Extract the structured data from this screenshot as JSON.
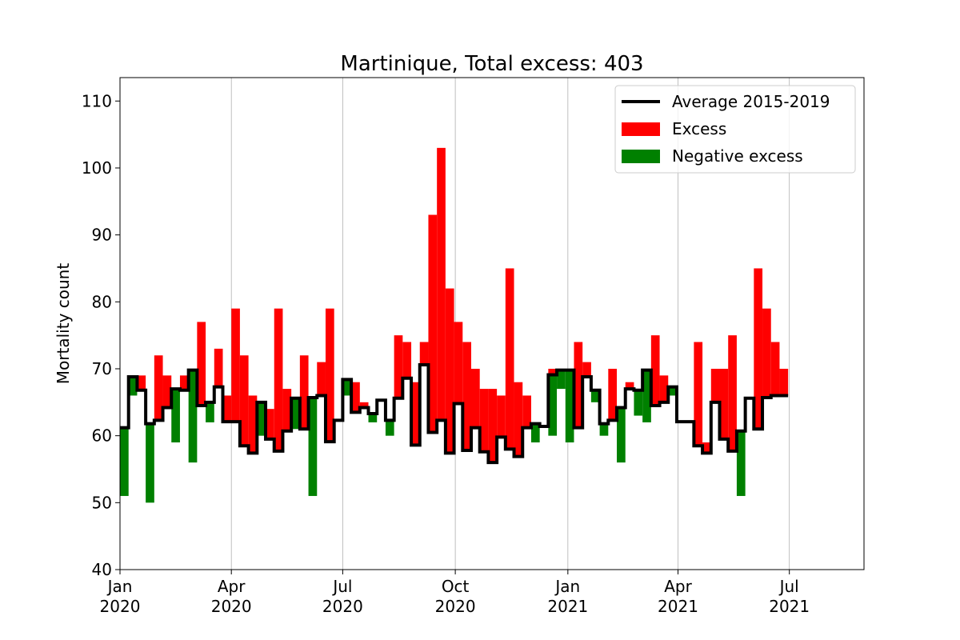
{
  "chart_data": {
    "type": "bar",
    "title": "Martinique, Total excess: 403",
    "xlabel": "",
    "ylabel": "Mortality count",
    "ylim": [
      40,
      113.5
    ],
    "xlim": [
      "2020-01-01",
      "2021-08-31"
    ],
    "grid": "vertical",
    "legend_position": "top-right",
    "y_ticks": [
      40,
      50,
      60,
      70,
      80,
      90,
      100,
      110
    ],
    "x_ticks": [
      {
        "date": "2020-01-01",
        "month": "Jan",
        "year": "2020"
      },
      {
        "date": "2020-04-01",
        "month": "Apr",
        "year": "2020"
      },
      {
        "date": "2020-07-01",
        "month": "Jul",
        "year": "2020"
      },
      {
        "date": "2020-10-01",
        "month": "Oct",
        "year": "2020"
      },
      {
        "date": "2021-01-01",
        "month": "Jan",
        "year": "2021"
      },
      {
        "date": "2021-04-01",
        "month": "Apr",
        "year": "2021"
      },
      {
        "date": "2021-07-01",
        "month": "Jul",
        "year": "2021"
      }
    ],
    "week_starts": [
      "2020-01-01",
      "2020-01-08",
      "2020-01-15",
      "2020-01-22",
      "2020-01-29",
      "2020-02-05",
      "2020-02-12",
      "2020-02-19",
      "2020-02-26",
      "2020-03-04",
      "2020-03-11",
      "2020-03-18",
      "2020-03-25",
      "2020-04-01",
      "2020-04-08",
      "2020-04-15",
      "2020-04-22",
      "2020-04-29",
      "2020-05-06",
      "2020-05-13",
      "2020-05-20",
      "2020-05-27",
      "2020-06-03",
      "2020-06-10",
      "2020-06-17",
      "2020-06-24",
      "2020-07-01",
      "2020-07-08",
      "2020-07-15",
      "2020-07-22",
      "2020-07-29",
      "2020-08-05",
      "2020-08-12",
      "2020-08-19",
      "2020-08-26",
      "2020-09-02",
      "2020-09-09",
      "2020-09-16",
      "2020-09-23",
      "2020-09-30",
      "2020-10-07",
      "2020-10-14",
      "2020-10-21",
      "2020-10-28",
      "2020-11-04",
      "2020-11-11",
      "2020-11-18",
      "2020-11-25",
      "2020-12-02",
      "2020-12-09",
      "2020-12-16",
      "2020-12-23",
      "2020-12-30",
      "2021-01-06",
      "2021-01-13",
      "2021-01-20",
      "2021-01-27",
      "2021-02-03",
      "2021-02-10",
      "2021-02-17",
      "2021-02-24",
      "2021-03-03",
      "2021-03-10",
      "2021-03-17",
      "2021-03-24",
      "2021-03-31",
      "2021-04-07",
      "2021-04-14",
      "2021-04-21",
      "2021-04-28",
      "2021-05-05",
      "2021-05-12",
      "2021-05-19",
      "2021-05-26",
      "2021-06-02",
      "2021-06-09",
      "2021-06-16",
      "2021-06-23"
    ],
    "week_end": "2021-06-30",
    "series": [
      {
        "name": "Average 2015-2019",
        "color": "#000000",
        "values": [
          61.2,
          68.8,
          66.8,
          61.8,
          62.3,
          64.2,
          67.0,
          66.8,
          69.8,
          64.5,
          65.0,
          67.3,
          62.1,
          62.1,
          58.5,
          57.4,
          65.0,
          59.5,
          57.7,
          60.7,
          65.6,
          61.0,
          65.7,
          66.0,
          59.1,
          62.3,
          68.4,
          63.5,
          64.2,
          63.3,
          65.3,
          62.3,
          65.6,
          68.6,
          58.6,
          70.6,
          60.5,
          62.3,
          57.4,
          64.8,
          57.8,
          61.2,
          57.6,
          56.0,
          59.8,
          58.0,
          56.9,
          61.2,
          61.8,
          61.4,
          69.1,
          69.8,
          69.8,
          61.2,
          68.8,
          66.8,
          61.8,
          62.3,
          64.2,
          67.0,
          66.8,
          69.8,
          64.5,
          65.0,
          67.3,
          62.1,
          62.1,
          58.5,
          57.4,
          65.0,
          59.5,
          57.7,
          60.7,
          65.6,
          61.0,
          65.7,
          66.0,
          66.0
        ]
      },
      {
        "name": "Excess",
        "color": "#ff0000",
        "values": [
          null,
          null,
          69,
          null,
          72,
          69,
          null,
          69,
          null,
          77,
          null,
          73,
          66,
          79,
          72,
          66,
          null,
          64,
          79,
          67,
          null,
          72,
          null,
          71,
          79,
          null,
          null,
          68,
          65,
          null,
          null,
          null,
          75,
          74,
          68,
          74,
          93,
          103,
          82,
          77,
          74,
          70,
          67,
          67,
          66,
          85,
          68,
          66,
          null,
          null,
          70,
          null,
          null,
          74,
          71,
          null,
          null,
          70,
          null,
          68,
          null,
          null,
          75,
          69,
          null,
          null,
          null,
          74,
          59,
          70,
          70,
          75,
          null,
          65,
          85,
          79,
          74,
          70
        ]
      },
      {
        "name": "Negative excess",
        "color": "#008000",
        "values": [
          51,
          66,
          null,
          50,
          null,
          null,
          59,
          null,
          56,
          null,
          62,
          null,
          null,
          null,
          null,
          null,
          60,
          null,
          null,
          null,
          61,
          null,
          51,
          null,
          null,
          null,
          66,
          null,
          null,
          62,
          null,
          60,
          null,
          null,
          null,
          null,
          null,
          null,
          null,
          null,
          null,
          null,
          null,
          null,
          null,
          null,
          null,
          null,
          59,
          null,
          60,
          67,
          59,
          null,
          null,
          65,
          60,
          null,
          56,
          null,
          63,
          62,
          null,
          null,
          66,
          null,
          null,
          null,
          null,
          null,
          null,
          null,
          51,
          null,
          null,
          null,
          null,
          null
        ]
      }
    ]
  }
}
